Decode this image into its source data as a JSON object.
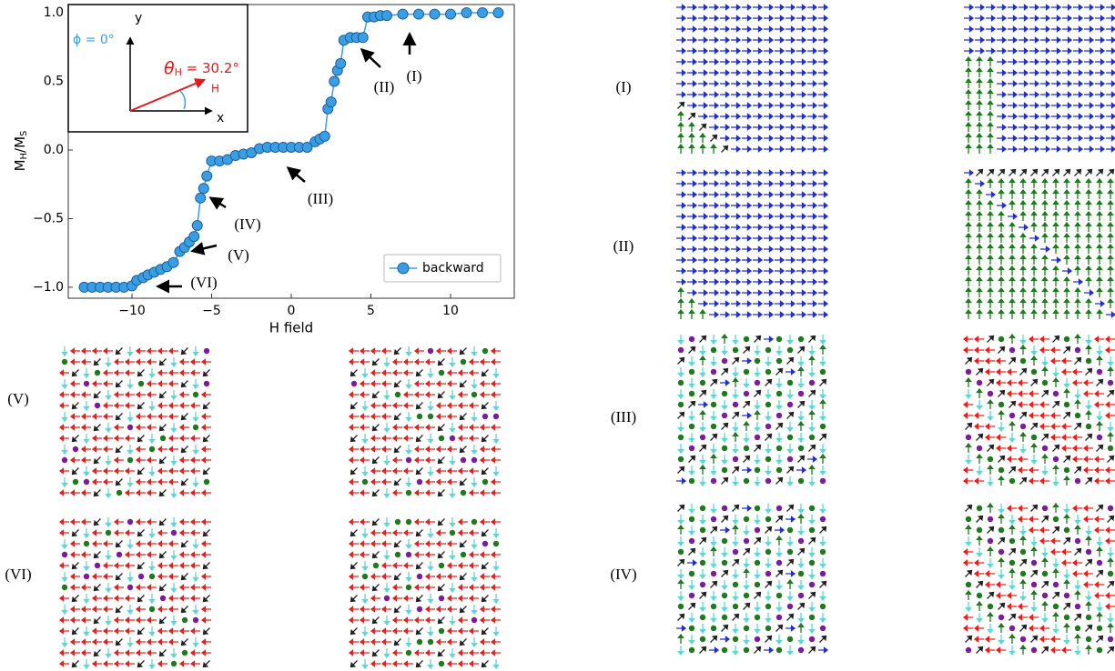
{
  "chart_data": {
    "type": "line",
    "xlabel": "H field",
    "ylabel": [
      "M",
      "H",
      "/M",
      "S"
    ],
    "xlim": [
      -14,
      14
    ],
    "ylim": [
      -1.08,
      1.06
    ],
    "xticks": [
      {
        "value": -10,
        "label": "−10"
      },
      {
        "value": -5,
        "label": "−5"
      },
      0,
      5,
      10
    ],
    "yticks": [
      {
        "value": -1,
        "label": "−1.0"
      },
      {
        "value": -0.5,
        "label": "−0.5"
      },
      {
        "value": 0,
        "label": "0.0"
      },
      0.5,
      {
        "value": 1,
        "label": "1.0"
      }
    ],
    "grid": false,
    "legend": "lower right",
    "x": [
      -13,
      -12.5,
      -12,
      -11.5,
      -11,
      -10.5,
      -10,
      -9.7,
      -9.3,
      -9,
      -8.6,
      -8.2,
      -7.8,
      -7.4,
      -7,
      -6.7,
      -6.4,
      -6.1,
      -5.9,
      -5.7,
      -5.5,
      -5.3,
      -5,
      -4.5,
      -4,
      -3.5,
      -3,
      -2.5,
      -2,
      -1.5,
      -1,
      -0.5,
      0,
      0.5,
      1,
      1.5,
      1.8,
      2.1,
      2.3,
      2.5,
      2.7,
      2.9,
      3.1,
      3.3,
      3.7,
      4.1,
      4.5,
      4.8,
      5.2,
      5.6,
      6,
      7,
      8,
      9,
      10,
      11,
      12,
      13
    ],
    "series": [
      {
        "name": "backward",
        "color": "#3a9ee4",
        "values": [
          -1,
          -1,
          -1,
          -1,
          -1,
          -1,
          -0.99,
          -0.95,
          -0.93,
          -0.91,
          -0.89,
          -0.87,
          -0.85,
          -0.82,
          -0.74,
          -0.71,
          -0.67,
          -0.63,
          -0.55,
          -0.35,
          -0.28,
          -0.19,
          -0.08,
          -0.08,
          -0.07,
          -0.04,
          -0.03,
          -0.02,
          0.01,
          0.02,
          0.02,
          0.02,
          0.02,
          0.02,
          0.02,
          0.06,
          0.08,
          0.1,
          0.3,
          0.35,
          0.5,
          0.58,
          0.63,
          0.8,
          0.82,
          0.82,
          0.82,
          0.97,
          0.97,
          0.98,
          0.98,
          0.99,
          0.99,
          0.99,
          0.99,
          1,
          1,
          1
        ]
      }
    ],
    "annotations": [
      "(I)",
      "(II)",
      "(III)",
      "(IV)",
      "(V)",
      "(VI)"
    ],
    "inset": {
      "phi": "ϕ = 0°",
      "theta": [
        "θ",
        "H",
        " = 30.2°"
      ],
      "x_axis": "x",
      "y_axis": "y",
      "field": "H"
    }
  },
  "panels": {
    "labels": [
      "(I)",
      "(II)",
      "(III)",
      "(IV)",
      "(V)",
      "(VI)"
    ]
  }
}
